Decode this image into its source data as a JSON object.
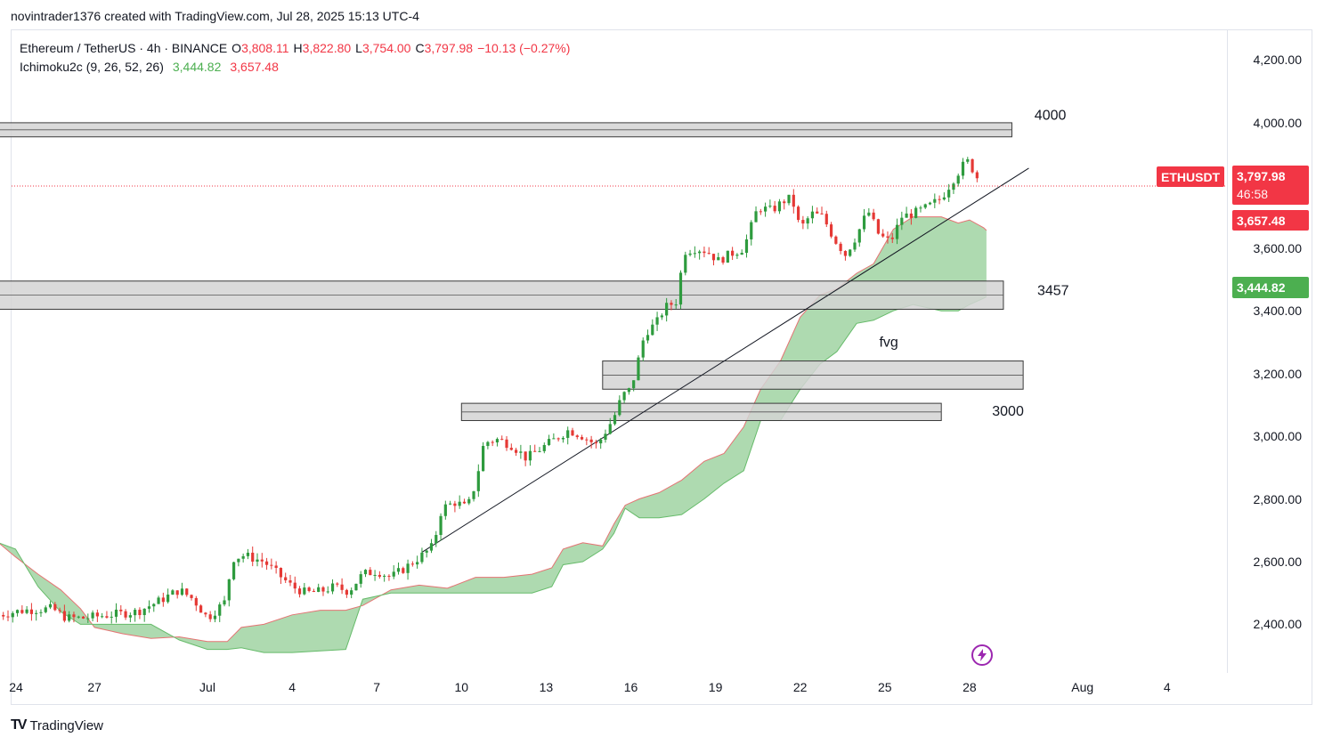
{
  "credit": "novintrader1376 created with TradingView.com, Jul 28, 2025 15:13 UTC-4",
  "legend": {
    "symbol": "Ethereum / TetherUS · 4h · BINANCE",
    "o_label": "O",
    "o_value": "3,808.11",
    "h_label": "H",
    "h_value": "3,822.80",
    "l_label": "L",
    "l_value": "3,754.00",
    "c_label": "C",
    "c_value": "3,797.98",
    "change": "−10.13 (−0.27%)",
    "indicator": "Ichimoku2c (9, 26, 52, 26)",
    "ind_value1": "3,444.82",
    "ind_value2": "3,657.48"
  },
  "badges": {
    "ticker": "ETHUSDT",
    "price": "3,797.98",
    "countdown": "46:58",
    "span_b": "3,657.48",
    "span_a": "3,444.82"
  },
  "colors": {
    "up": "#26a69a",
    "candle_up": "#2e9b3e",
    "candle_down": "#e53935",
    "cloud": "#a5d6a7",
    "price_badge": "#f23645",
    "span_a_badge": "#4caf50"
  },
  "footer": {
    "brand": "TradingView"
  },
  "chart_data": {
    "type": "candlestick",
    "ylim": [
      2245,
      4295
    ],
    "y_ticks": [
      2400,
      2600,
      2800,
      3000,
      3200,
      3400,
      3600,
      4000,
      4200
    ],
    "y_tick_labels": [
      "2,400.00",
      "2,600.00",
      "2,800.00",
      "3,000.00",
      "3,200.00",
      "3,400.00",
      "3,600.00",
      "4,000.00",
      "4,200.00"
    ],
    "x_ticks": [
      "24",
      "27",
      "Jul",
      "4",
      "7",
      "10",
      "13",
      "16",
      "19",
      "22",
      "25",
      "28",
      "Aug",
      "4"
    ],
    "x_tick_days": [
      -6,
      -3,
      1,
      4,
      7,
      10,
      13,
      16,
      19,
      22,
      25,
      28,
      32,
      35
    ],
    "x_tick_labels": [
      "24",
      "27",
      "Jul",
      "4",
      "7",
      "10",
      "13",
      "16",
      "19",
      "22",
      "25",
      "28",
      "Aug",
      "4"
    ],
    "close_path": [
      [
        -6.4,
        2430
      ],
      [
        -5.5,
        2445
      ],
      [
        -4.5,
        2450
      ],
      [
        -4.0,
        2420
      ],
      [
        -3.4,
        2420
      ],
      [
        -2.5,
        2430
      ],
      [
        -1.5,
        2440
      ],
      [
        -0.8,
        2470
      ],
      [
        0,
        2510
      ],
      [
        0.5,
        2480
      ],
      [
        1,
        2420
      ],
      [
        1.6,
        2470
      ],
      [
        1.9,
        2610
      ],
      [
        2.3,
        2620
      ],
      [
        3,
        2600
      ],
      [
        3.5,
        2560
      ],
      [
        4,
        2520
      ],
      [
        4.5,
        2500
      ],
      [
        5,
        2505
      ],
      [
        5.5,
        2520
      ],
      [
        6,
        2505
      ],
      [
        6.5,
        2560
      ],
      [
        7,
        2570
      ],
      [
        7.5,
        2550
      ],
      [
        8,
        2580
      ],
      [
        8.6,
        2620
      ],
      [
        9,
        2650
      ],
      [
        9.3,
        2770
      ],
      [
        9.8,
        2790
      ],
      [
        10.2,
        2770
      ],
      [
        10.5,
        2850
      ],
      [
        10.8,
        2980
      ],
      [
        11.3,
        2990
      ],
      [
        11.8,
        2970
      ],
      [
        12.3,
        2930
      ],
      [
        12.8,
        2960
      ],
      [
        13.3,
        2990
      ],
      [
        13.8,
        3020
      ],
      [
        14.3,
        3000
      ],
      [
        14.8,
        2970
      ],
      [
        15.4,
        3060
      ],
      [
        15.7,
        3130
      ],
      [
        16,
        3150
      ],
      [
        16.2,
        3220
      ],
      [
        16.5,
        3330
      ],
      [
        16.9,
        3360
      ],
      [
        17.2,
        3410
      ],
      [
        17.6,
        3430
      ],
      [
        17.9,
        3590
      ],
      [
        18.3,
        3600
      ],
      [
        18.7,
        3590
      ],
      [
        19.1,
        3560
      ],
      [
        19.5,
        3580
      ],
      [
        20,
        3600
      ],
      [
        20.5,
        3730
      ],
      [
        21.0,
        3720
      ],
      [
        21.4,
        3750
      ],
      [
        21.7,
        3760
      ],
      [
        22.0,
        3660
      ],
      [
        22.4,
        3710
      ],
      [
        22.8,
        3700
      ],
      [
        23.2,
        3630
      ],
      [
        23.6,
        3580
      ],
      [
        24.0,
        3640
      ],
      [
        24.4,
        3720
      ],
      [
        24.8,
        3640
      ],
      [
        25.2,
        3620
      ],
      [
        25.6,
        3700
      ],
      [
        26.0,
        3710
      ],
      [
        26.5,
        3730
      ],
      [
        27,
        3760
      ],
      [
        27.5,
        3830
      ],
      [
        27.9,
        3880
      ],
      [
        28.2,
        3840
      ],
      [
        28.4,
        3798
      ]
    ],
    "cloud_upper": [
      [
        -6.4,
        2660
      ],
      [
        -5.8,
        2615
      ],
      [
        -5.0,
        2560
      ],
      [
        -4.2,
        2510
      ],
      [
        -3.5,
        2450
      ],
      [
        -3.0,
        2390
      ],
      [
        -2.0,
        2370
      ],
      [
        -1.0,
        2355
      ],
      [
        0,
        2360
      ],
      [
        1,
        2345
      ],
      [
        1.7,
        2345
      ],
      [
        2.2,
        2390
      ],
      [
        3,
        2400
      ],
      [
        4,
        2430
      ],
      [
        5,
        2445
      ],
      [
        5.9,
        2445
      ],
      [
        6.5,
        2460
      ],
      [
        7.5,
        2510
      ],
      [
        8.5,
        2525
      ],
      [
        9.5,
        2515
      ],
      [
        10.5,
        2550
      ],
      [
        11.5,
        2550
      ],
      [
        12.5,
        2560
      ],
      [
        13.2,
        2580
      ],
      [
        13.6,
        2640
      ],
      [
        14.3,
        2660
      ],
      [
        15.0,
        2650
      ],
      [
        15.4,
        2720
      ],
      [
        15.8,
        2780
      ],
      [
        16.3,
        2800
      ],
      [
        17,
        2820
      ],
      [
        17.8,
        2860
      ],
      [
        18.6,
        2920
      ],
      [
        19.3,
        2945
      ],
      [
        20,
        3030
      ],
      [
        20.6,
        3150
      ],
      [
        21.3,
        3240
      ],
      [
        22.0,
        3380
      ],
      [
        22.7,
        3450
      ],
      [
        23.3,
        3470
      ],
      [
        24.0,
        3520
      ],
      [
        24.6,
        3550
      ],
      [
        25.3,
        3660
      ],
      [
        26.0,
        3700
      ],
      [
        27,
        3700
      ],
      [
        27.6,
        3680
      ],
      [
        28,
        3690
      ],
      [
        28.5,
        3665
      ],
      [
        28.6,
        3657
      ]
    ],
    "cloud_lower": [
      [
        -6.4,
        2660
      ],
      [
        -5.8,
        2640
      ],
      [
        -5.0,
        2520
      ],
      [
        -4.2,
        2440
      ],
      [
        -3.5,
        2400
      ],
      [
        -3.0,
        2400
      ],
      [
        -2.0,
        2400
      ],
      [
        -1.0,
        2400
      ],
      [
        0,
        2350
      ],
      [
        1,
        2320
      ],
      [
        1.7,
        2320
      ],
      [
        2.2,
        2325
      ],
      [
        3,
        2310
      ],
      [
        4,
        2310
      ],
      [
        5,
        2315
      ],
      [
        5.9,
        2320
      ],
      [
        6.5,
        2480
      ],
      [
        7.5,
        2500
      ],
      [
        8.5,
        2500
      ],
      [
        9.5,
        2500
      ],
      [
        10.5,
        2500
      ],
      [
        11.5,
        2500
      ],
      [
        12.5,
        2500
      ],
      [
        13.2,
        2520
      ],
      [
        13.6,
        2590
      ],
      [
        14.3,
        2600
      ],
      [
        15.0,
        2640
      ],
      [
        15.4,
        2690
      ],
      [
        15.8,
        2770
      ],
      [
        16.3,
        2740
      ],
      [
        17,
        2740
      ],
      [
        17.8,
        2750
      ],
      [
        18.6,
        2800
      ],
      [
        19.3,
        2850
      ],
      [
        20,
        2890
      ],
      [
        20.6,
        3050
      ],
      [
        21.3,
        3050
      ],
      [
        22.0,
        3150
      ],
      [
        22.7,
        3230
      ],
      [
        23.3,
        3270
      ],
      [
        24.0,
        3360
      ],
      [
        24.6,
        3370
      ],
      [
        25.3,
        3400
      ],
      [
        26.0,
        3420
      ],
      [
        27,
        3400
      ],
      [
        27.6,
        3400
      ],
      [
        28,
        3420
      ],
      [
        28.5,
        3440
      ],
      [
        28.6,
        3445
      ]
    ],
    "zones": [
      {
        "from_day": -6.9,
        "to_day": 29.5,
        "low": 3955,
        "high": 4000,
        "label": "4000",
        "label_day": 30.3,
        "label_price": 4010
      },
      {
        "from_day": -6.9,
        "to_day": 29.2,
        "low": 3405,
        "high": 3495,
        "label": "3457",
        "label_day": 30.4,
        "label_price": 3450
      },
      {
        "from_day": 15.0,
        "to_day": 29.9,
        "low": 3150,
        "high": 3240,
        "label": "fvg",
        "label_day": 24.8,
        "label_price": 3285
      },
      {
        "from_day": 10.0,
        "to_day": 27.0,
        "low": 3050,
        "high": 3105,
        "label": "3000",
        "label_day": 28.8,
        "label_price": 3065
      }
    ],
    "trendline": [
      [
        8.6,
        2630
      ],
      [
        30.1,
        3855
      ]
    ],
    "last_price": 3797.98
  }
}
